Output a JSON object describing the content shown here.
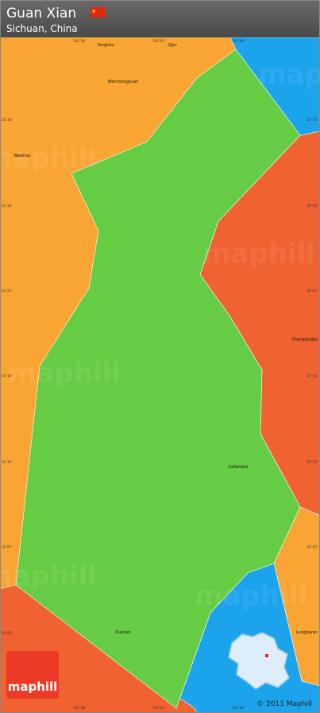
{
  "header": {
    "title": "Guan Xian",
    "subtitle": "Sichuan, China"
  },
  "places": [
    "Tonghou",
    "Qijiu",
    "Wenchengyuan",
    "Weizhou",
    "Shangguojiai",
    "Caifanjiao",
    "Duyuan",
    "Longjiayan"
  ],
  "longitudes": [
    "103°38'",
    "103°43'",
    "103°48'"
  ],
  "latitudes": [
    "31°30'",
    "31°26'",
    "31°21'",
    "31°16'",
    "31°12'",
    "31°07'",
    "31°02'"
  ],
  "watermark": "maphill",
  "logo": "maphill",
  "copyright": "© 2011 Maphill"
}
